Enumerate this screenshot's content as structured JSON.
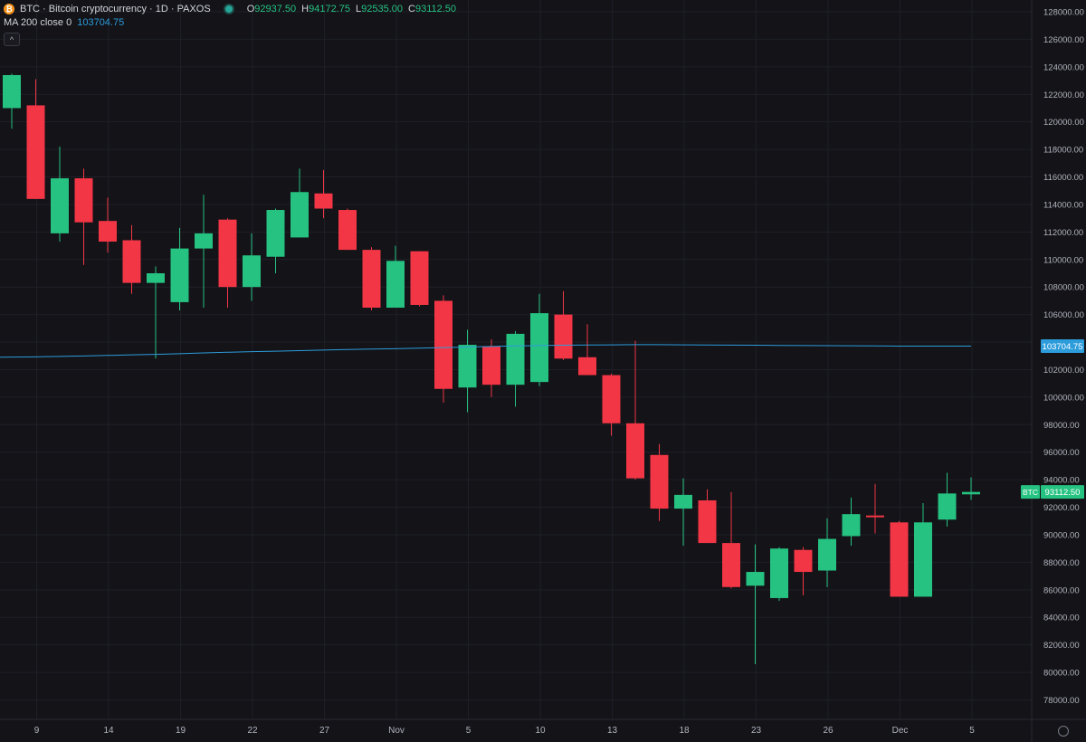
{
  "legend": {
    "coin_icon": "bitcoin-icon",
    "title": "BTC · Bitcoin cryptocurrency · 1D · PAXOS",
    "ohlc": {
      "o_key": "O",
      "o_val": "92937.50",
      "h_key": "H",
      "h_val": "94172.75",
      "l_key": "L",
      "l_val": "92535.00",
      "c_key": "C",
      "c_val": "93112.50"
    }
  },
  "ma_legend": {
    "label": "MA 200 close 0",
    "value": "103704.75"
  },
  "collapse_icon": "chevron-up-icon",
  "colors": {
    "up": "#26c281",
    "down": "#f23645",
    "ma": "#2d9cdb",
    "grid": "#1f1f27",
    "background": "#131318"
  },
  "chart_data": {
    "type": "candlestick",
    "symbol": "BTC",
    "interval": "1D",
    "exchange": "PAXOS",
    "ylim": [
      76500,
      128500
    ],
    "y_ticks": [
      "128000.00",
      "126000.00",
      "124000.00",
      "122000.00",
      "120000.00",
      "118000.00",
      "116000.00",
      "114000.00",
      "112000.00",
      "110000.00",
      "108000.00",
      "106000.00",
      "104000.00",
      "102000.00",
      "100000.00",
      "98000.00",
      "96000.00",
      "94000.00",
      "92000.00",
      "90000.00",
      "88000.00",
      "86000.00",
      "84000.00",
      "82000.00",
      "80000.00",
      "78000.00"
    ],
    "x_ticks": [
      {
        "label": "9",
        "index": 1
      },
      {
        "label": "14",
        "index": 4
      },
      {
        "label": "19",
        "index": 7
      },
      {
        "label": "22",
        "index": 10
      },
      {
        "label": "27",
        "index": 13
      },
      {
        "label": "Nov",
        "index": 16
      },
      {
        "label": "5",
        "index": 19
      },
      {
        "label": "10",
        "index": 22
      },
      {
        "label": "13",
        "index": 25
      },
      {
        "label": "18",
        "index": 28
      },
      {
        "label": "23",
        "index": 31
      },
      {
        "label": "26",
        "index": 34
      },
      {
        "label": "Dec",
        "index": 37
      },
      {
        "label": "5",
        "index": 40
      }
    ],
    "candles": [
      {
        "o": 121000,
        "h": 123500,
        "l": 119500,
        "c": 123400
      },
      {
        "o": 121200,
        "h": 123100,
        "l": 114400,
        "c": 114400
      },
      {
        "o": 111900,
        "h": 118200,
        "l": 111300,
        "c": 115900
      },
      {
        "o": 115900,
        "h": 116600,
        "l": 109600,
        "c": 112700
      },
      {
        "o": 112800,
        "h": 114500,
        "l": 110500,
        "c": 111300
      },
      {
        "o": 111400,
        "h": 112500,
        "l": 107500,
        "c": 108300
      },
      {
        "o": 108300,
        "h": 109500,
        "l": 102800,
        "c": 109000
      },
      {
        "o": 106900,
        "h": 112300,
        "l": 106300,
        "c": 110800
      },
      {
        "o": 110800,
        "h": 114700,
        "l": 106500,
        "c": 111900
      },
      {
        "o": 112900,
        "h": 113000,
        "l": 106500,
        "c": 108000
      },
      {
        "o": 108000,
        "h": 111900,
        "l": 107000,
        "c": 110300
      },
      {
        "o": 110200,
        "h": 113700,
        "l": 109000,
        "c": 113600
      },
      {
        "o": 111600,
        "h": 116600,
        "l": 111600,
        "c": 114900
      },
      {
        "o": 114800,
        "h": 116500,
        "l": 113000,
        "c": 113700
      },
      {
        "o": 113600,
        "h": 113700,
        "l": 110700,
        "c": 110700
      },
      {
        "o": 110700,
        "h": 110900,
        "l": 106300,
        "c": 106500
      },
      {
        "o": 106500,
        "h": 111000,
        "l": 106500,
        "c": 109900
      },
      {
        "o": 110600,
        "h": 110600,
        "l": 106600,
        "c": 106700
      },
      {
        "o": 107000,
        "h": 107400,
        "l": 99600,
        "c": 100600
      },
      {
        "o": 100700,
        "h": 104900,
        "l": 98900,
        "c": 103800
      },
      {
        "o": 103700,
        "h": 104200,
        "l": 100000,
        "c": 100900
      },
      {
        "o": 100900,
        "h": 104800,
        "l": 99300,
        "c": 104600
      },
      {
        "o": 101100,
        "h": 107500,
        "l": 100800,
        "c": 106100
      },
      {
        "o": 106000,
        "h": 107700,
        "l": 102700,
        "c": 102800
      },
      {
        "o": 102900,
        "h": 105300,
        "l": 101600,
        "c": 101600
      },
      {
        "o": 101600,
        "h": 101700,
        "l": 97200,
        "c": 98100
      },
      {
        "o": 98100,
        "h": 104100,
        "l": 94000,
        "c": 94100
      },
      {
        "o": 95800,
        "h": 96600,
        "l": 91000,
        "c": 91900
      },
      {
        "o": 91900,
        "h": 94100,
        "l": 89200,
        "c": 92900
      },
      {
        "o": 92500,
        "h": 93300,
        "l": 89400,
        "c": 89400
      },
      {
        "o": 89400,
        "h": 93100,
        "l": 86100,
        "c": 86200
      },
      {
        "o": 86300,
        "h": 89300,
        "l": 80600,
        "c": 87300
      },
      {
        "o": 85400,
        "h": 89100,
        "l": 85200,
        "c": 89000
      },
      {
        "o": 88900,
        "h": 89100,
        "l": 85600,
        "c": 87300
      },
      {
        "o": 87400,
        "h": 91200,
        "l": 86200,
        "c": 89700
      },
      {
        "o": 89900,
        "h": 92700,
        "l": 89200,
        "c": 91500
      },
      {
        "o": 91400,
        "h": 93700,
        "l": 90100,
        "c": 91300
      },
      {
        "o": 90900,
        "h": 91000,
        "l": 85500,
        "c": 85500
      },
      {
        "o": 85500,
        "h": 92300,
        "l": 85500,
        "c": 90900
      },
      {
        "o": 91100,
        "h": 94500,
        "l": 90600,
        "c": 93000
      },
      {
        "o": 92937.5,
        "h": 94172.75,
        "l": 92535,
        "c": 93112.5
      }
    ],
    "ma": {
      "name": "MA 200 close 0",
      "values": [
        102900,
        102930,
        102960,
        102990,
        103030,
        103070,
        103110,
        103160,
        103210,
        103260,
        103300,
        103340,
        103380,
        103420,
        103460,
        103490,
        103520,
        103560,
        103600,
        103640,
        103680,
        103720,
        103750,
        103770,
        103790,
        103800,
        103810,
        103810,
        103800,
        103790,
        103780,
        103770,
        103760,
        103750,
        103740,
        103730,
        103720,
        103710,
        103710,
        103705,
        103704.75
      ]
    },
    "current_price_label": {
      "symbol": "BTC",
      "value": "93112.50"
    },
    "ma_price_label": "103704.75"
  }
}
